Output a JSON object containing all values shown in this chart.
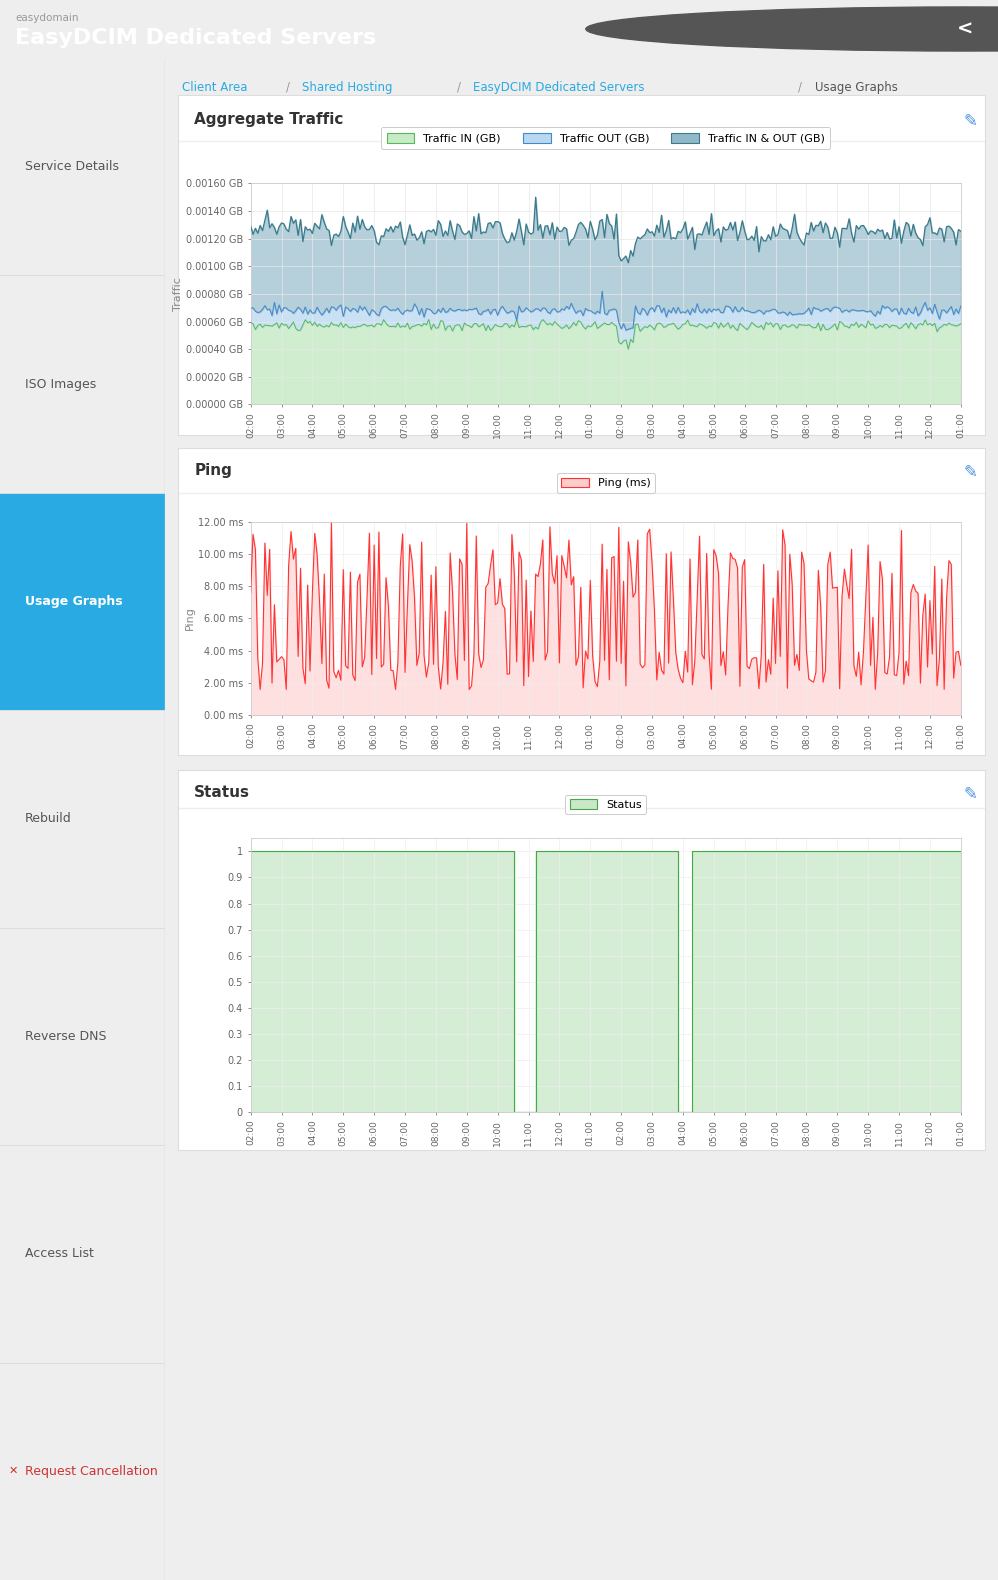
{
  "header_bg": "#3c3c3c",
  "header_subtitle": "easydomain",
  "header_title": "EasyDCIM Dedicated Servers",
  "header_subtitle_color": "#999999",
  "header_title_color": "#ffffff",
  "sidebar_bg": "#f5f5f5",
  "sidebar_active_bg": "#29aae2",
  "sidebar_items": [
    "Service Details",
    "ISO Images",
    "Usage Graphs",
    "Rebuild",
    "Reverse DNS",
    "Access List",
    "Request Cancellation"
  ],
  "sidebar_active_index": 2,
  "sidebar_cancel_color": "#cc3333",
  "breadcrumb_link_color": "#29aae2",
  "section_title_color": "#333333",
  "edit_icon_color": "#4a90d9",
  "chart1_title": "Aggregate Traffic",
  "chart1_ylabel": "Traffic",
  "chart1_ytick_labels": [
    "0.00000 GB",
    "0.00020 GB",
    "0.00040 GB",
    "0.00060 GB",
    "0.00080 GB",
    "0.00100 GB",
    "0.00120 GB",
    "0.00140 GB",
    "0.00160 GB"
  ],
  "chart1_yvals": [
    0.0,
    0.0002,
    0.0004,
    0.0006,
    0.0008,
    0.001,
    0.0012,
    0.0014,
    0.0016
  ],
  "chart1_xticklabels": [
    "02:00",
    "03:00",
    "04:00",
    "05:00",
    "06:00",
    "07:00",
    "08:00",
    "09:00",
    "10:00",
    "11:00",
    "12:00",
    "01:00",
    "02:00",
    "03:00",
    "04:00",
    "05:00",
    "06:00",
    "07:00",
    "08:00",
    "09:00",
    "10:00",
    "11:00",
    "12:00",
    "01:00"
  ],
  "chart2_title": "Ping",
  "chart2_ylabel": "Ping",
  "chart2_ytick_labels": [
    "0.00 ms",
    "2.00 ms",
    "4.00 ms",
    "6.00 ms",
    "8.00 ms",
    "10.00 ms",
    "12.00 ms"
  ],
  "chart2_yvals": [
    0,
    2,
    4,
    6,
    8,
    10,
    12
  ],
  "chart2_xticklabels": [
    "02:00",
    "03:00",
    "04:00",
    "05:00",
    "06:00",
    "07:00",
    "08:00",
    "09:00",
    "10:00",
    "11:00",
    "12:00",
    "01:00",
    "02:00",
    "03:00",
    "04:00",
    "05:00",
    "06:00",
    "07:00",
    "08:00",
    "09:00",
    "10:00",
    "11:00",
    "12:00",
    "01:00"
  ],
  "chart3_title": "Status",
  "chart3_ytick_labels": [
    "0",
    "0.1",
    "0.2",
    "0.3",
    "0.4",
    "0.5",
    "0.6",
    "0.7",
    "0.8",
    "0.9",
    "1"
  ],
  "chart3_yvals": [
    0.0,
    0.1,
    0.2,
    0.3,
    0.4,
    0.5,
    0.6,
    0.7,
    0.8,
    0.9,
    1.0
  ],
  "chart3_xticklabels": [
    "02:00",
    "03:00",
    "04:00",
    "05:00",
    "06:00",
    "07:00",
    "08:00",
    "09:00",
    "10:00",
    "11:00",
    "12:00",
    "01:00",
    "02:00",
    "03:00",
    "04:00",
    "05:00",
    "06:00",
    "07:00",
    "08:00",
    "09:00",
    "10:00",
    "11:00",
    "12:00",
    "01:00"
  ],
  "grid_color": "#dddddd",
  "tick_label_color": "#666666",
  "axis_label_color": "#888888"
}
